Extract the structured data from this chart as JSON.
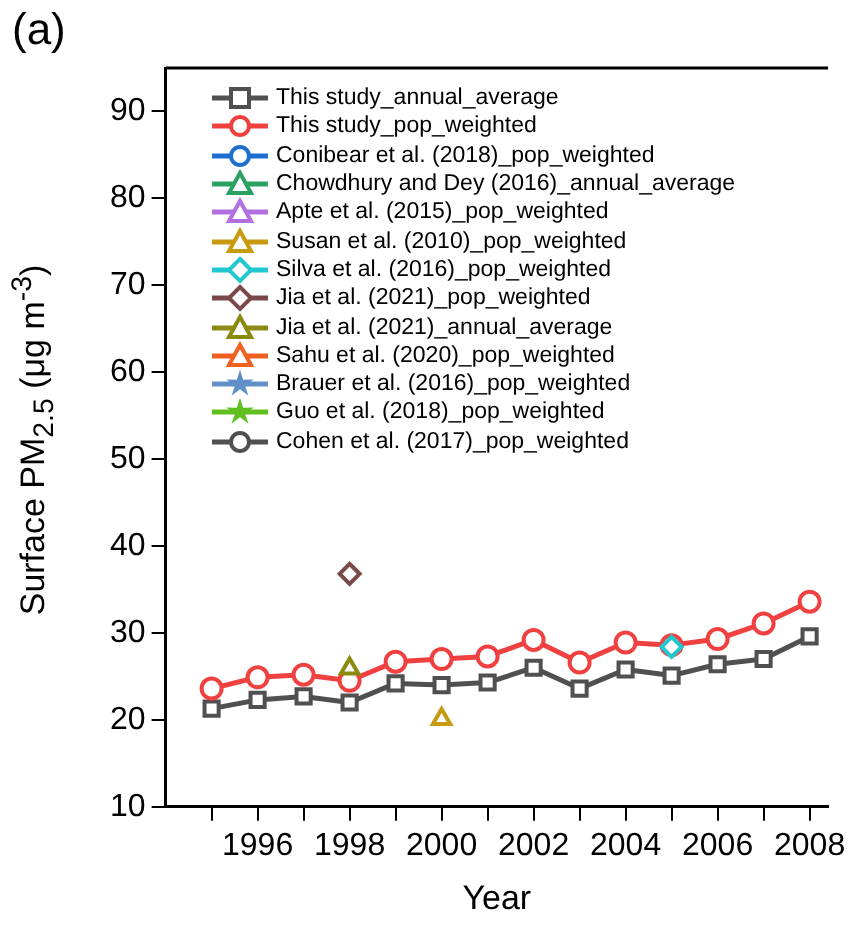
{
  "chart_data": {
    "type": "line",
    "title": "(a)",
    "xlabel": "Year",
    "ylabel": "Surface PM$_{2.5}$ (μg m$^{-3}$)",
    "x": [
      1995,
      1996,
      1997,
      1998,
      1999,
      2000,
      2001,
      2002,
      2003,
      2004,
      2005,
      2006,
      2007,
      2008
    ],
    "xlim": [
      1994,
      2008.4
    ],
    "xticks": [
      {
        "value": 1995,
        "label": null
      },
      1996,
      {
        "value": 1997,
        "label": null
      },
      1998,
      {
        "value": 1999,
        "label": null
      },
      2000,
      {
        "value": 2001,
        "label": null
      },
      2002,
      {
        "value": 2003,
        "label": null
      },
      2004,
      {
        "value": 2005,
        "label": null
      },
      2006,
      {
        "value": 2007,
        "label": null
      },
      2008
    ],
    "ylim": [
      10,
      95
    ],
    "yticks": [
      10,
      20,
      30,
      40,
      50,
      60,
      70,
      80,
      90
    ],
    "grid": false,
    "legend": "top left",
    "series": [
      {
        "name": "This study_annual_average",
        "color": "#505050",
        "marker": "square",
        "values": [
          21.3,
          22.3,
          22.7,
          22,
          24.2,
          24,
          24.3,
          26,
          23.6,
          25.8,
          25.1,
          26.4,
          27,
          29.6
        ]
      },
      {
        "name": "This study_pop_weighted",
        "color": "#f04040",
        "marker": "circle",
        "values": [
          23.6,
          24.9,
          25.2,
          24.5,
          26.7,
          27,
          27.3,
          29.2,
          26.6,
          28.9,
          28.6,
          29.3,
          31.1,
          33.6
        ]
      },
      {
        "name": "Conibear et al. (2018)_pop_weighted",
        "color": "#1f6fd0",
        "marker": "circle",
        "values": [
          null,
          null,
          null,
          null,
          null,
          null,
          null,
          null,
          null,
          null,
          null,
          null,
          null,
          null
        ]
      },
      {
        "name": "Chowdhury and Dey (2016)_annual_average",
        "color": "#2ca060",
        "marker": "triangle",
        "values": [
          null,
          null,
          null,
          null,
          null,
          null,
          null,
          null,
          null,
          null,
          null,
          null,
          null,
          null
        ]
      },
      {
        "name": "Apte et al. (2015)_pop_weighted",
        "color": "#b070e0",
        "marker": "triangle",
        "values": [
          null,
          null,
          null,
          null,
          null,
          null,
          null,
          null,
          null,
          null,
          null,
          null,
          null,
          null
        ]
      },
      {
        "name": "Susan et al. (2010)_pop_weighted",
        "color": "#c89a10",
        "marker": "triangle",
        "values": [
          null,
          null,
          null,
          null,
          null,
          20.1,
          null,
          null,
          null,
          null,
          null,
          null,
          null,
          null
        ]
      },
      {
        "name": "Silva et al. (2016)_pop_weighted",
        "color": "#20c8d0",
        "marker": "diamond",
        "values": [
          null,
          null,
          null,
          null,
          null,
          null,
          null,
          null,
          null,
          null,
          28.4,
          null,
          null,
          null
        ]
      },
      {
        "name": "Jia et al. (2021)_pop_weighted",
        "color": "#7a4a4a",
        "marker": "diamond",
        "values": [
          null,
          null,
          null,
          36.8,
          null,
          null,
          null,
          null,
          null,
          null,
          null,
          null,
          null,
          null
        ]
      },
      {
        "name": "Jia et al. (2021)_annual_average",
        "color": "#8a8a10",
        "marker": "triangle",
        "values": [
          null,
          null,
          null,
          25.9,
          null,
          null,
          null,
          null,
          null,
          null,
          null,
          null,
          null,
          null
        ]
      },
      {
        "name": "Sahu et al. (2020)_pop_weighted",
        "color": "#f06020",
        "marker": "triangle",
        "values": [
          null,
          null,
          null,
          null,
          null,
          null,
          null,
          null,
          null,
          null,
          null,
          null,
          null,
          null
        ]
      },
      {
        "name": "Brauer et al. (2016)_pop_weighted",
        "color": "#6090c8",
        "marker": "star",
        "values": [
          null,
          null,
          null,
          null,
          null,
          null,
          null,
          null,
          null,
          null,
          null,
          null,
          null,
          null
        ]
      },
      {
        "name": "Guo et al. (2018)_pop_weighted",
        "color": "#60c020",
        "marker": "star",
        "values": [
          null,
          null,
          null,
          null,
          null,
          null,
          null,
          null,
          null,
          null,
          null,
          null,
          null,
          null
        ]
      },
      {
        "name": "Cohen et al. (2017)_pop_weighted",
        "color": "#505050",
        "marker": "circle",
        "values": [
          null,
          null,
          null,
          null,
          null,
          null,
          null,
          null,
          null,
          null,
          null,
          null,
          null,
          null
        ]
      }
    ]
  }
}
